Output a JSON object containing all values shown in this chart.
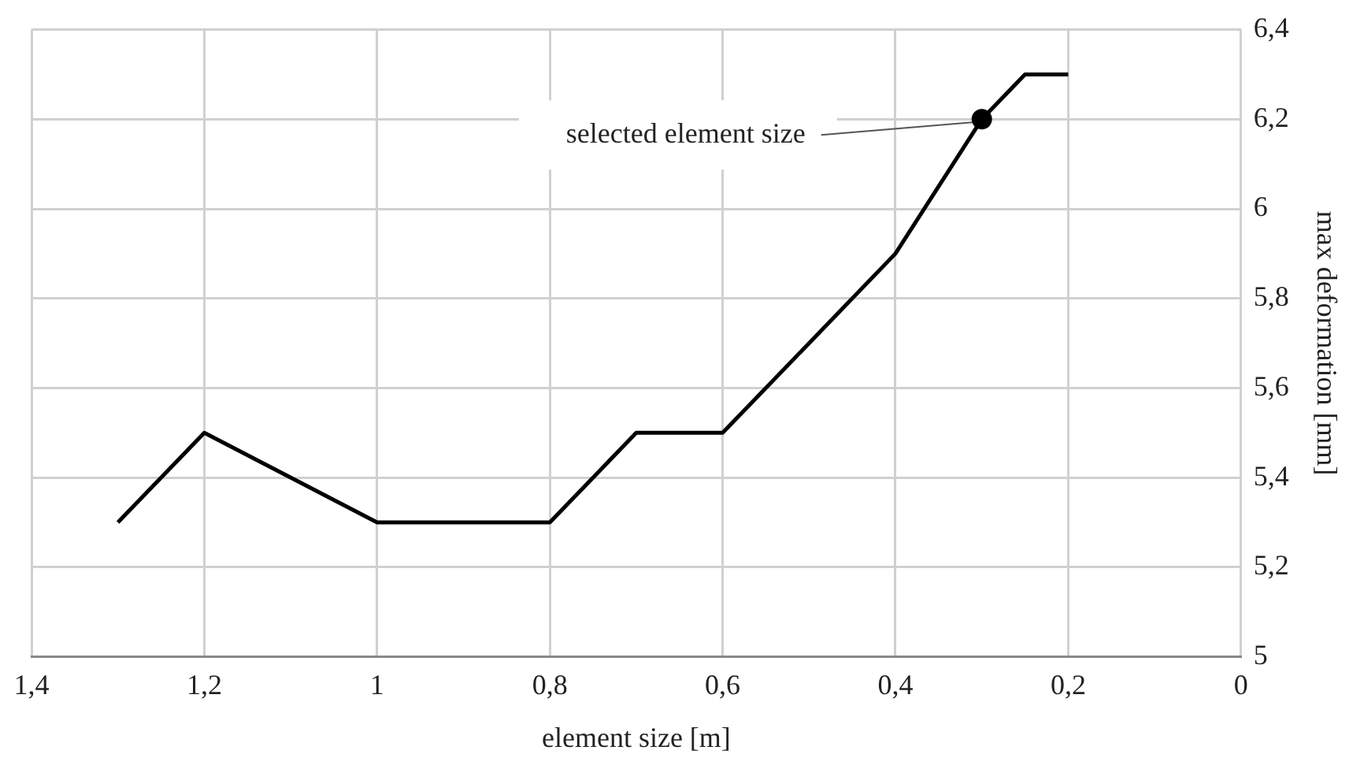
{
  "chart_data": {
    "type": "line",
    "xlabel": "element size [m]",
    "ylabel": "max deformation [mm]",
    "xlim": [
      1.4,
      0
    ],
    "ylim": [
      5,
      6.4
    ],
    "xticks": [
      {
        "value": 1.4,
        "label": "1,4"
      },
      {
        "value": 1.2,
        "label": "1,2"
      },
      1,
      {
        "value": 0.8,
        "label": "0,8"
      },
      {
        "value": 0.6,
        "label": "0,6"
      },
      {
        "value": 0.4,
        "label": "0,4"
      },
      {
        "value": 0.2,
        "label": "0,2"
      },
      0
    ],
    "yticks": [
      5,
      {
        "value": 5.2,
        "label": "5,2"
      },
      {
        "value": 5.4,
        "label": "5,4"
      },
      {
        "value": 5.6,
        "label": "5,6"
      },
      {
        "value": 5.8,
        "label": "5,8"
      },
      6,
      {
        "value": 6.2,
        "label": "6,2"
      },
      {
        "value": 6.4,
        "label": "6,4"
      }
    ],
    "grid": true,
    "legend": false,
    "marker": "none",
    "line_style": "solid",
    "series": [
      {
        "type": "line",
        "color": "#000000",
        "x": [
          1.3,
          1.2,
          1.0,
          0.8,
          0.7,
          0.6,
          0.4,
          0.3,
          0.25,
          0.2
        ],
        "values": [
          5.3,
          5.5,
          5.3,
          5.3,
          5.5,
          5.5,
          5.9,
          6.2,
          6.3,
          6.3
        ]
      },
      {
        "type": "scatter",
        "color": "#000000",
        "marker": "circle",
        "x": [
          0.3
        ],
        "values": [
          6.2
        ]
      }
    ],
    "annotations": [
      {
        "text": "selected element size",
        "x": 0.3,
        "y": 6.2
      }
    ]
  }
}
